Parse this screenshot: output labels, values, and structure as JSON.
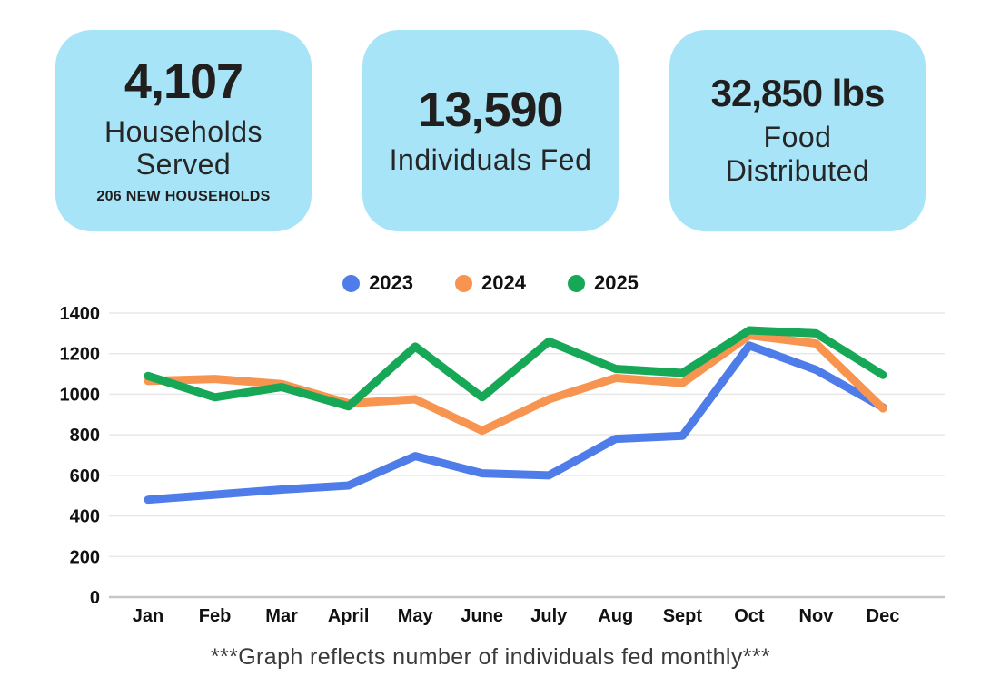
{
  "cards": [
    {
      "value": "4,107",
      "label": "Households Served",
      "sub": "206 NEW HOUSEHOLDS"
    },
    {
      "value": "13,590",
      "label": "Individuals Fed",
      "sub": ""
    },
    {
      "value": "32,850 lbs",
      "label": "Food Distributed",
      "sub": ""
    }
  ],
  "legend": [
    {
      "label": "2023",
      "color": "#4e7ce8"
    },
    {
      "label": "2024",
      "color": "#f79450"
    },
    {
      "label": "2025",
      "color": "#16a757"
    }
  ],
  "chart_data": {
    "type": "line",
    "categories": [
      "Jan",
      "Feb",
      "Mar",
      "April",
      "May",
      "June",
      "July",
      "Aug",
      "Sept",
      "Oct",
      "Nov",
      "Dec"
    ],
    "series": [
      {
        "name": "2023",
        "color": "#4e7ce8",
        "values": [
          480,
          505,
          530,
          550,
          695,
          610,
          600,
          780,
          795,
          1240,
          1120,
          935
        ]
      },
      {
        "name": "2024",
        "color": "#f79450",
        "values": [
          1065,
          1075,
          1050,
          955,
          975,
          820,
          975,
          1080,
          1055,
          1290,
          1250,
          930
        ]
      },
      {
        "name": "2025",
        "color": "#16a757",
        "values": [
          1090,
          985,
          1035,
          940,
          1235,
          985,
          1260,
          1125,
          1105,
          1315,
          1300,
          1095
        ]
      }
    ],
    "ylim": [
      0,
      1400
    ],
    "ytick_step": 200,
    "grid": true,
    "legend_position": "top-center",
    "grid_color": "#e8e8e8",
    "axis_color": "#c6c6c6",
    "tick_label_color": "#111111"
  },
  "footer": {
    "note": "***Graph reflects number of individuals fed monthly***"
  }
}
